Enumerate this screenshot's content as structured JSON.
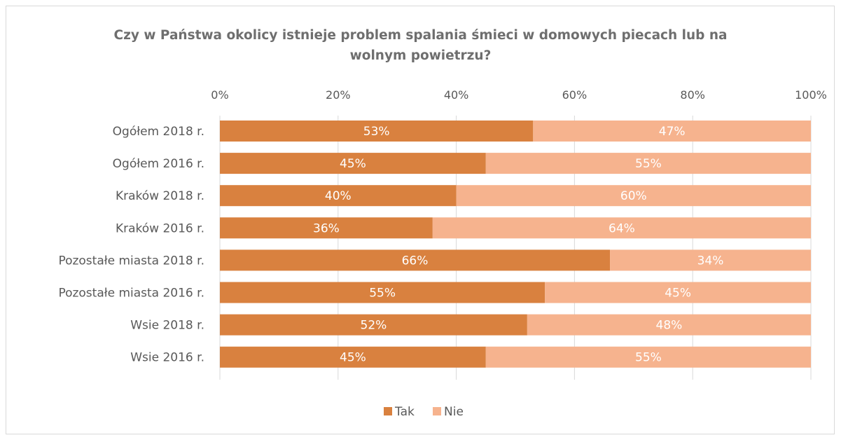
{
  "chart_data": {
    "type": "bar",
    "orientation": "horizontal",
    "stacked": true,
    "title_lines": [
      "Czy w Państwa okolicy istnieje problem spalania śmieci w domowych piecach lub na",
      "wolnym powietrzu?"
    ],
    "categories": [
      "Ogółem 2018 r.",
      "Ogółem 2016 r.",
      "Kraków 2018 r.",
      "Kraków 2016 r.",
      "Pozostałe miasta 2018 r.",
      "Pozostałe miasta 2016 r.",
      "Wsie 2018 r.",
      "Wsie 2016 r."
    ],
    "series": [
      {
        "name": "Tak",
        "color": "#d9813f",
        "values": [
          53,
          45,
          40,
          36,
          66,
          55,
          52,
          45
        ],
        "labels": [
          "53%",
          "45%",
          "40%",
          "36%",
          "66%",
          "55%",
          "52%",
          "45%"
        ]
      },
      {
        "name": "Nie",
        "color": "#f6b38e",
        "values": [
          47,
          55,
          60,
          64,
          34,
          45,
          48,
          55
        ],
        "labels": [
          "47%",
          "55%",
          "60%",
          "64%",
          "34%",
          "45%",
          "48%",
          "55%"
        ]
      }
    ],
    "xlim": [
      0,
      100
    ],
    "x_ticks": [
      0,
      20,
      40,
      60,
      80,
      100
    ],
    "x_tick_labels": [
      "0%",
      "20%",
      "40%",
      "60%",
      "80%",
      "100%"
    ],
    "axis_position": "top",
    "grid": "vertical",
    "legend_position": "bottom"
  }
}
